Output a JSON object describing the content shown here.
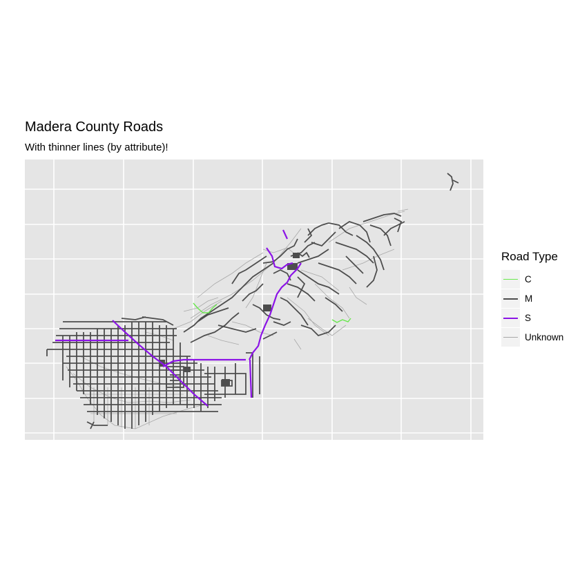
{
  "map": {
    "title": "Madera County Roads",
    "subtitle": "With thinner lines (by attribute)!",
    "background": "#e5e5e5",
    "grid_color": "#ffffff",
    "grid": true,
    "axes_labels_shown": false
  },
  "legend": {
    "title": "Road Type",
    "position": "right",
    "items": [
      {
        "label": "C",
        "color": "#66e84a"
      },
      {
        "label": "M",
        "color": "#4d4d4d"
      },
      {
        "label": "S",
        "color": "#8b13e6"
      },
      {
        "label": "Unknown",
        "color": "#a8a8a8"
      }
    ]
  }
}
